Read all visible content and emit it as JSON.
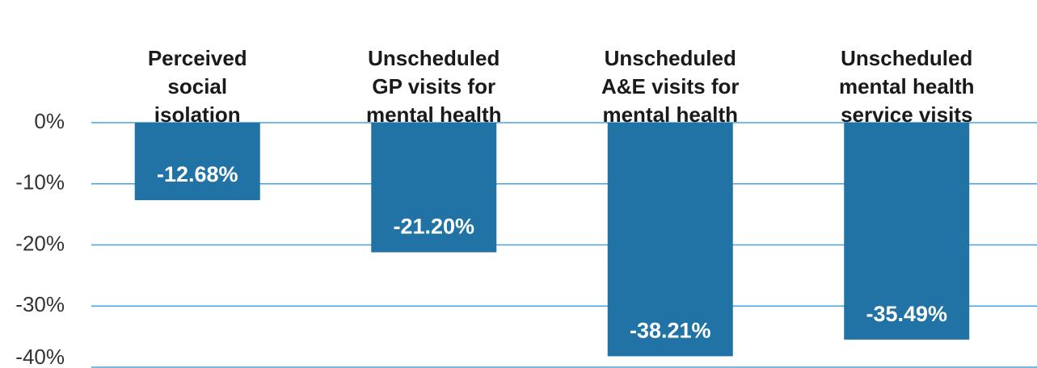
{
  "chart_data": {
    "type": "bar",
    "categories": [
      "Perceived social isolation",
      "Unscheduled GP visits for mental health",
      "Unscheduled A&E visits for mental health",
      "Unscheduled mental health service visits"
    ],
    "values": [
      -12.68,
      -21.2,
      -38.21,
      -35.49
    ],
    "value_labels": [
      "-12.68%",
      "-21.20%",
      "-38.21%",
      "-35.49%"
    ],
    "color": "#2173a6",
    "ylim": [
      -40,
      0
    ],
    "yticks": [
      {
        "value": 0,
        "label": "0%"
      },
      {
        "value": -10,
        "label": "-10%"
      },
      {
        "value": -20,
        "label": "-20%"
      },
      {
        "value": -30,
        "label": "-30%"
      },
      {
        "value": -40,
        "label": "-40%"
      }
    ],
    "grid": true,
    "grid_color": "#4aa3d8"
  }
}
